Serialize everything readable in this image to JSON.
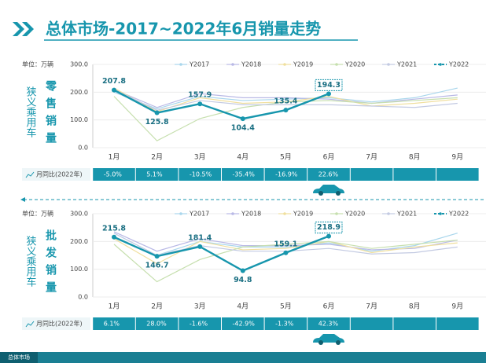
{
  "header": {
    "title": "总体市场-2017~2022年6月销量走势"
  },
  "chart_data": [
    {
      "type": "line",
      "unit": "单位：万辆",
      "side_label": "狭义乘用车",
      "ylabel": "零售销量",
      "categories": [
        "1月",
        "2月",
        "3月",
        "4月",
        "5月",
        "6月",
        "7月",
        "8月",
        "9月"
      ],
      "ylim": [
        0,
        300
      ],
      "yticks": [
        {
          "value": 0,
          "label": "0.0"
        },
        {
          "value": 100,
          "label": "100.0"
        },
        {
          "value": 200,
          "label": "200.0"
        },
        {
          "value": 300,
          "label": "300.0"
        }
      ],
      "series": [
        {
          "name": "Y2017",
          "color": "#a9d6ec",
          "values": [
            200,
            140,
            185,
            170,
            175,
            180,
            165,
            180,
            215
          ]
        },
        {
          "name": "Y2018",
          "color": "#b9b9e6",
          "values": [
            210,
            145,
            195,
            180,
            180,
            175,
            160,
            175,
            190
          ]
        },
        {
          "name": "Y2019",
          "color": "#f0df9e",
          "values": [
            215,
            130,
            180,
            160,
            165,
            185,
            150,
            160,
            175
          ]
        },
        {
          "name": "Y2020",
          "color": "#c6dfae",
          "values": [
            185,
            25,
            105,
            145,
            165,
            170,
            160,
            170,
            180
          ]
        },
        {
          "name": "Y2021",
          "color": "#c3cae2",
          "values": [
            210,
            135,
            170,
            155,
            155,
            155,
            150,
            145,
            160
          ]
        },
        {
          "name": "Y2022",
          "color": "#1796ad",
          "values": [
            207.8,
            125.8,
            157.9,
            104.4,
            135.4,
            194.3,
            null,
            null,
            null
          ]
        }
      ],
      "yoy_label": "月同比(2022年)",
      "yoy": [
        "-5.0%",
        "5.1%",
        "-10.5%",
        "-35.4%",
        "-16.9%",
        "22.6%"
      ]
    },
    {
      "type": "line",
      "unit": "单位：万辆",
      "side_label": "狭义乘用车",
      "ylabel": "批发销量",
      "categories": [
        "1月",
        "2月",
        "3月",
        "4月",
        "5月",
        "6月",
        "7月",
        "8月",
        "9月"
      ],
      "ylim": [
        0,
        300
      ],
      "yticks": [
        {
          "value": 0,
          "label": "0.0"
        },
        {
          "value": 100,
          "label": "100.0"
        },
        {
          "value": 200,
          "label": "200.0"
        },
        {
          "value": 300,
          "label": "300.0"
        }
      ],
      "series": [
        {
          "name": "Y2017",
          "color": "#a9d6ec",
          "values": [
            230,
            150,
            200,
            180,
            180,
            195,
            165,
            185,
            230
          ]
        },
        {
          "name": "Y2018",
          "color": "#b9b9e6",
          "values": [
            235,
            165,
            210,
            185,
            185,
            190,
            170,
            175,
            205
          ]
        },
        {
          "name": "Y2019",
          "color": "#f0df9e",
          "values": [
            210,
            120,
            200,
            170,
            175,
            200,
            160,
            180,
            195
          ]
        },
        {
          "name": "Y2020",
          "color": "#c6dfae",
          "values": [
            190,
            55,
            135,
            180,
            190,
            200,
            175,
            190,
            205
          ]
        },
        {
          "name": "Y2021",
          "color": "#c3cae2",
          "values": [
            230,
            150,
            185,
            165,
            165,
            175,
            155,
            160,
            180
          ]
        },
        {
          "name": "Y2022",
          "color": "#1796ad",
          "values": [
            215.8,
            146.7,
            181.4,
            94.8,
            159.1,
            218.9,
            null,
            null,
            null
          ]
        }
      ],
      "yoy_label": "月同比(2022年)",
      "yoy": [
        "6.1%",
        "28.0%",
        "-1.6%",
        "-42.9%",
        "-1.3%",
        "42.3%"
      ]
    }
  ],
  "footer": {
    "tab": "总体市场"
  }
}
